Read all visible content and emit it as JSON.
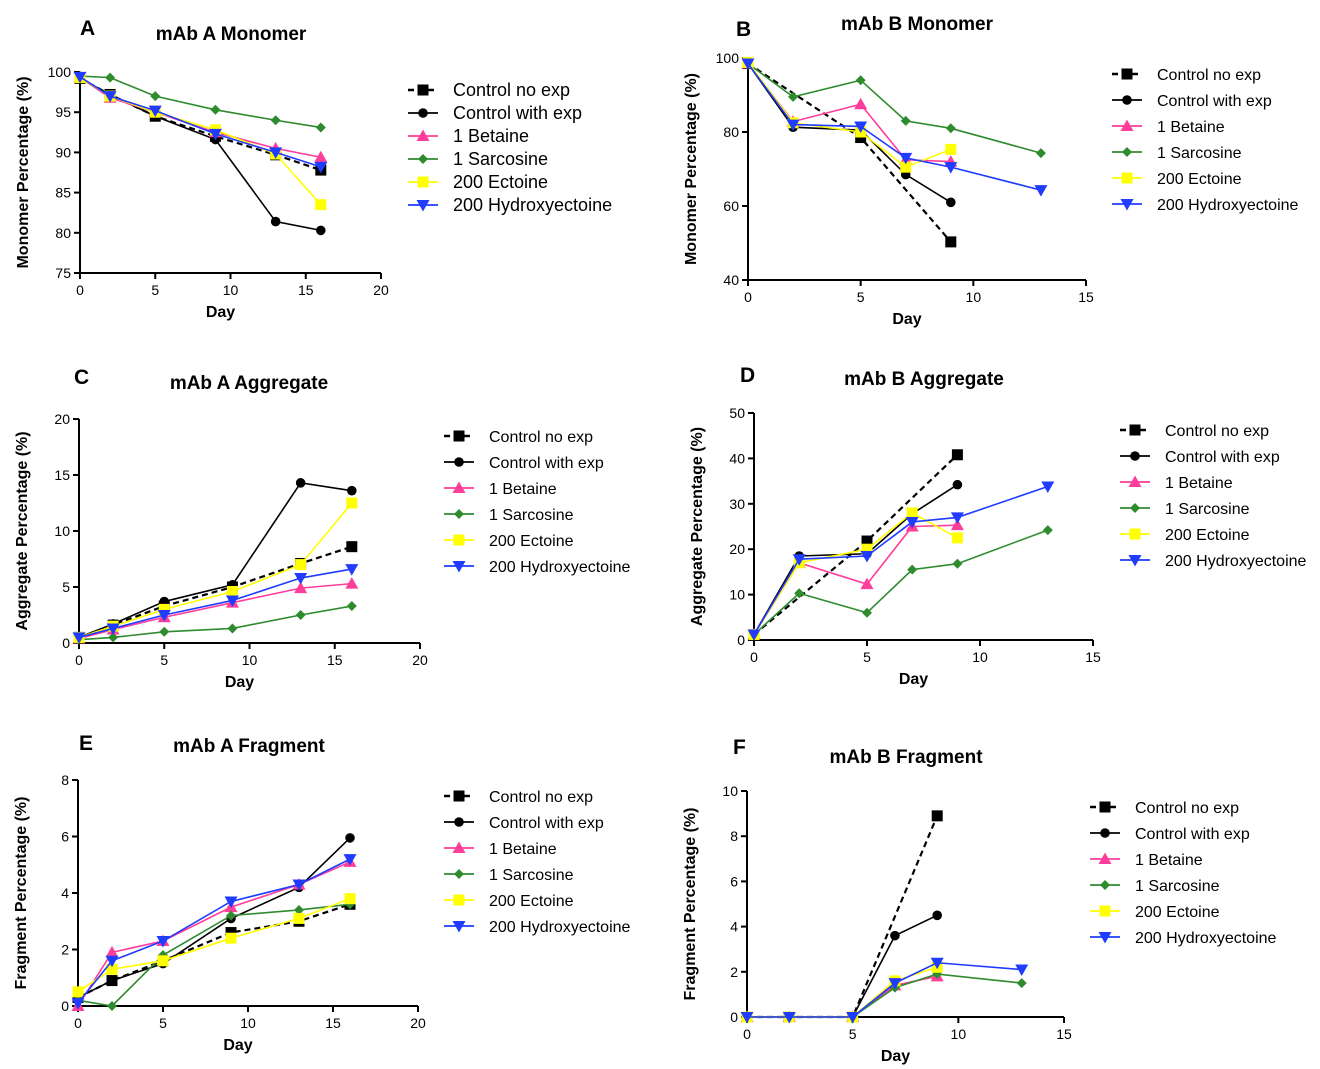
{
  "chart_data": [
    {
      "panel": "A",
      "type": "line",
      "title": "mAb A Monomer",
      "xlabel": "Day",
      "ylabel": "Monomer Percentage (%)",
      "xlim": [
        0,
        20
      ],
      "ylim": [
        75,
        100
      ],
      "xticks": [
        0,
        5,
        10,
        15,
        20
      ],
      "yticks": [
        75,
        80,
        85,
        90,
        95,
        100
      ],
      "series": [
        {
          "name": "Control no exp",
          "color": "#000000",
          "marker": "square",
          "dashed": true,
          "x": [
            0,
            2,
            5,
            9,
            13,
            16
          ],
          "y": [
            99.2,
            97.2,
            94.5,
            92.0,
            89.7,
            87.8
          ]
        },
        {
          "name": "Control with exp",
          "color": "#000000",
          "marker": "circle",
          "dashed": false,
          "x": [
            0,
            2,
            5,
            9,
            13,
            16
          ],
          "y": [
            99.2,
            97.2,
            94.5,
            91.6,
            81.4,
            80.3
          ]
        },
        {
          "name": "1 Betaine",
          "color": "#ff3d9a",
          "marker": "triangle-up",
          "dashed": false,
          "x": [
            0,
            2,
            5,
            9,
            13,
            16
          ],
          "y": [
            99.3,
            96.8,
            95.0,
            92.5,
            90.5,
            89.4
          ]
        },
        {
          "name": "1 Sarcosine",
          "color": "#2e8b2e",
          "marker": "diamond",
          "dashed": false,
          "x": [
            0,
            2,
            5,
            9,
            13,
            16
          ],
          "y": [
            99.5,
            99.3,
            97.0,
            95.3,
            94.0,
            93.1
          ]
        },
        {
          "name": "200 Ectoine",
          "color": "#ffff00",
          "marker": "square",
          "dashed": false,
          "x": [
            0,
            2,
            5,
            9,
            13,
            16
          ],
          "y": [
            99.3,
            97.0,
            95.0,
            92.8,
            89.8,
            83.5
          ]
        },
        {
          "name": "200 Hydroxyectoine",
          "color": "#1f3cff",
          "marker": "triangle-down",
          "dashed": false,
          "x": [
            0,
            2,
            5,
            9,
            13,
            16
          ],
          "y": [
            99.4,
            97.0,
            95.2,
            92.3,
            90.0,
            88.2
          ]
        }
      ]
    },
    {
      "panel": "B",
      "type": "line",
      "title": "mAb B Monomer",
      "xlabel": "Day",
      "ylabel": "Monomer Percentage (%)",
      "xlim": [
        0,
        15
      ],
      "ylim": [
        40,
        100
      ],
      "xticks": [
        0,
        5,
        10,
        15
      ],
      "yticks": [
        40,
        60,
        80,
        100
      ],
      "series": [
        {
          "name": "Control no exp",
          "color": "#000000",
          "marker": "square",
          "dashed": true,
          "x": [
            0,
            5,
            9
          ],
          "y": [
            98.5,
            78.5,
            50.3
          ]
        },
        {
          "name": "Control with exp",
          "color": "#000000",
          "marker": "circle",
          "dashed": false,
          "x": [
            0,
            2,
            5,
            7,
            9
          ],
          "y": [
            98.5,
            81.3,
            80.5,
            68.5,
            61.0
          ]
        },
        {
          "name": "1 Betaine",
          "color": "#ff3d9a",
          "marker": "triangle-up",
          "dashed": false,
          "x": [
            0,
            2,
            5,
            7,
            9
          ],
          "y": [
            98.5,
            82.8,
            87.5,
            72.5,
            72.0
          ]
        },
        {
          "name": "1 Sarcosine",
          "color": "#2e8b2e",
          "marker": "diamond",
          "dashed": false,
          "x": [
            0,
            2,
            5,
            7,
            9,
            13
          ],
          "y": [
            98.5,
            89.5,
            94.0,
            83.0,
            81.0,
            74.3
          ]
        },
        {
          "name": "200 Ectoine",
          "color": "#ffff00",
          "marker": "square",
          "dashed": false,
          "x": [
            0,
            2,
            5,
            7,
            9
          ],
          "y": [
            98.8,
            82.5,
            80.0,
            70.5,
            75.3
          ]
        },
        {
          "name": "200 Hydroxyectoine",
          "color": "#1f3cff",
          "marker": "triangle-down",
          "dashed": false,
          "x": [
            0,
            2,
            5,
            7,
            9,
            13
          ],
          "y": [
            98.5,
            82.0,
            81.5,
            73.0,
            70.5,
            64.3
          ]
        }
      ]
    },
    {
      "panel": "C",
      "type": "line",
      "title": "mAb A Aggregate",
      "xlabel": "Day",
      "ylabel": "Aggregate Percentage (%)",
      "xlim": [
        0,
        20
      ],
      "ylim": [
        0,
        20
      ],
      "xticks": [
        0,
        5,
        10,
        15,
        20
      ],
      "yticks": [
        0,
        5,
        10,
        15,
        20
      ],
      "series": [
        {
          "name": "Control no exp",
          "color": "#000000",
          "marker": "square",
          "dashed": true,
          "x": [
            0,
            2,
            5,
            9,
            13,
            16
          ],
          "y": [
            0.5,
            1.6,
            3.3,
            5.0,
            7.1,
            8.6
          ]
        },
        {
          "name": "Control with exp",
          "color": "#000000",
          "marker": "circle",
          "dashed": false,
          "x": [
            0,
            2,
            5,
            9,
            13,
            16
          ],
          "y": [
            0.5,
            1.7,
            3.7,
            5.2,
            14.3,
            13.6
          ]
        },
        {
          "name": "1 Betaine",
          "color": "#ff3d9a",
          "marker": "triangle-up",
          "dashed": false,
          "x": [
            0,
            2,
            5,
            9,
            13,
            16
          ],
          "y": [
            0.4,
            1.2,
            2.3,
            3.6,
            4.9,
            5.3
          ]
        },
        {
          "name": "1 Sarcosine",
          "color": "#2e8b2e",
          "marker": "diamond",
          "dashed": false,
          "x": [
            0,
            2,
            5,
            9,
            13,
            16
          ],
          "y": [
            0.3,
            0.5,
            1.0,
            1.3,
            2.5,
            3.3
          ]
        },
        {
          "name": "200 Ectoine",
          "color": "#ffff00",
          "marker": "square",
          "dashed": false,
          "x": [
            0,
            2,
            5,
            9,
            13,
            16
          ],
          "y": [
            0.5,
            1.5,
            3.0,
            4.6,
            7.0,
            12.5
          ]
        },
        {
          "name": "200 Hydroxyectoine",
          "color": "#1f3cff",
          "marker": "triangle-down",
          "dashed": false,
          "x": [
            0,
            2,
            5,
            9,
            13,
            16
          ],
          "y": [
            0.5,
            1.3,
            2.5,
            3.8,
            5.8,
            6.6
          ]
        }
      ]
    },
    {
      "panel": "D",
      "type": "line",
      "title": "mAb  B Aggregate",
      "xlabel": "Day",
      "ylabel": "Aggregate Percentage (%)",
      "xlim": [
        0,
        15
      ],
      "ylim": [
        0,
        50
      ],
      "xticks": [
        0,
        5,
        10,
        15
      ],
      "yticks": [
        0,
        10,
        20,
        30,
        40,
        50
      ],
      "series": [
        {
          "name": "Control no exp",
          "color": "#000000",
          "marker": "square",
          "dashed": true,
          "x": [
            0,
            5,
            9
          ],
          "y": [
            1.2,
            21.8,
            40.8
          ]
        },
        {
          "name": "Control with exp",
          "color": "#000000",
          "marker": "circle",
          "dashed": false,
          "x": [
            0,
            2,
            5,
            7,
            9
          ],
          "y": [
            1.2,
            18.5,
            19.0,
            27.8,
            34.2
          ]
        },
        {
          "name": "1 Betaine",
          "color": "#ff3d9a",
          "marker": "triangle-up",
          "dashed": false,
          "x": [
            0,
            2,
            5,
            7,
            9
          ],
          "y": [
            1.2,
            17.0,
            12.3,
            25.0,
            25.3
          ]
        },
        {
          "name": "1 Sarcosine",
          "color": "#2e8b2e",
          "marker": "diamond",
          "dashed": false,
          "x": [
            0,
            2,
            5,
            7,
            9,
            13
          ],
          "y": [
            1.2,
            10.3,
            6.0,
            15.5,
            16.8,
            24.2
          ]
        },
        {
          "name": "200 Ectoine",
          "color": "#ffff00",
          "marker": "square",
          "dashed": false,
          "x": [
            0,
            2,
            5,
            7,
            9
          ],
          "y": [
            1.2,
            17.0,
            20.0,
            28.0,
            22.5
          ]
        },
        {
          "name": "200 Hydroxyectoine",
          "color": "#1f3cff",
          "marker": "triangle-down",
          "dashed": false,
          "x": [
            0,
            2,
            5,
            7,
            9,
            13
          ],
          "y": [
            1.2,
            17.8,
            18.5,
            26.0,
            27.0,
            33.8
          ]
        }
      ]
    },
    {
      "panel": "E",
      "type": "line",
      "title": "mAb A Fragment",
      "xlabel": "Day",
      "ylabel": "Fragment Percentage (%)",
      "xlim": [
        0,
        20
      ],
      "ylim": [
        0,
        8
      ],
      "xticks": [
        0,
        5,
        10,
        15,
        20
      ],
      "yticks": [
        0,
        2,
        4,
        6,
        8
      ],
      "series": [
        {
          "name": "Control no exp",
          "color": "#000000",
          "marker": "square",
          "dashed": true,
          "x": [
            0,
            2,
            5,
            9,
            13,
            16
          ],
          "y": [
            0.3,
            0.9,
            1.6,
            2.6,
            3.0,
            3.6
          ]
        },
        {
          "name": "Control with exp",
          "color": "#000000",
          "marker": "circle",
          "dashed": false,
          "x": [
            0,
            2,
            5,
            9,
            13,
            16
          ],
          "y": [
            0.3,
            0.9,
            1.5,
            3.1,
            4.2,
            5.95
          ]
        },
        {
          "name": "1 Betaine",
          "color": "#ff3d9a",
          "marker": "triangle-up",
          "dashed": false,
          "x": [
            0,
            2,
            5,
            9,
            13,
            16
          ],
          "y": [
            0.0,
            1.9,
            2.3,
            3.5,
            4.3,
            5.1
          ]
        },
        {
          "name": "1 Sarcosine",
          "color": "#2e8b2e",
          "marker": "diamond",
          "dashed": false,
          "x": [
            0,
            2,
            5,
            9,
            13,
            16
          ],
          "y": [
            0.2,
            0.0,
            1.8,
            3.2,
            3.4,
            3.6
          ]
        },
        {
          "name": "200 Ectoine",
          "color": "#ffff00",
          "marker": "square",
          "dashed": false,
          "x": [
            0,
            2,
            5,
            9,
            13,
            16
          ],
          "y": [
            0.5,
            1.3,
            1.6,
            2.4,
            3.1,
            3.8
          ]
        },
        {
          "name": "200 Hydroxyectoine",
          "color": "#1f3cff",
          "marker": "triangle-down",
          "dashed": false,
          "x": [
            0,
            2,
            5,
            9,
            13,
            16
          ],
          "y": [
            0.1,
            1.6,
            2.3,
            3.7,
            4.3,
            5.2
          ]
        }
      ]
    },
    {
      "panel": "F",
      "type": "line",
      "title": "mAb  B Fragment",
      "xlabel": "Day",
      "ylabel": "Fragment Percentage (%)",
      "xlim": [
        0,
        15
      ],
      "ylim": [
        0,
        10
      ],
      "xticks": [
        0,
        5,
        10,
        15
      ],
      "yticks": [
        0,
        2,
        4,
        6,
        8,
        10
      ],
      "series": [
        {
          "name": "Control no exp",
          "color": "#000000",
          "marker": "square",
          "dashed": true,
          "x": [
            0,
            2,
            5,
            9
          ],
          "y": [
            0.0,
            0.0,
            0.0,
            8.9
          ]
        },
        {
          "name": "Control with exp",
          "color": "#000000",
          "marker": "circle",
          "dashed": false,
          "x": [
            0,
            2,
            5,
            7,
            9
          ],
          "y": [
            0.0,
            0.0,
            0.0,
            3.6,
            4.5
          ]
        },
        {
          "name": "1 Betaine",
          "color": "#ff3d9a",
          "marker": "triangle-up",
          "dashed": false,
          "x": [
            0,
            2,
            5,
            7,
            9
          ],
          "y": [
            0.0,
            0.0,
            0.0,
            1.4,
            1.8
          ]
        },
        {
          "name": "1 Sarcosine",
          "color": "#2e8b2e",
          "marker": "diamond",
          "dashed": false,
          "x": [
            0,
            2,
            5,
            7,
            9,
            13
          ],
          "y": [
            0.0,
            0.0,
            0.0,
            1.3,
            1.9,
            1.5
          ]
        },
        {
          "name": "200 Ectoine",
          "color": "#ffff00",
          "marker": "square",
          "dashed": false,
          "x": [
            0,
            2,
            5,
            7,
            9
          ],
          "y": [
            0.0,
            0.0,
            0.0,
            1.6,
            2.2
          ]
        },
        {
          "name": "200 Hydroxyectoine",
          "color": "#1f3cff",
          "marker": "triangle-down",
          "dashed": false,
          "x": [
            0,
            2,
            5,
            7,
            9,
            13
          ],
          "y": [
            0.0,
            0.0,
            0.0,
            1.5,
            2.4,
            2.1
          ]
        }
      ]
    }
  ]
}
